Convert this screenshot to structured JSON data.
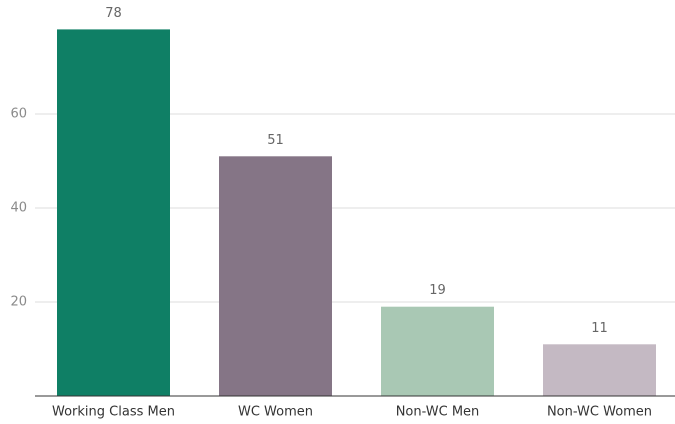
{
  "chart_data": {
    "type": "bar",
    "categories": [
      "Working Class Men",
      "WC Women",
      "Non-WC Men",
      "Non-WC Women"
    ],
    "values": [
      78,
      51,
      19,
      11
    ],
    "colors": [
      "#0f7f65",
      "#857586",
      "#a9c8b4",
      "#c4b9c3"
    ],
    "ylim": [
      0,
      80
    ],
    "yticks": [
      20,
      40,
      60
    ],
    "grid": true
  }
}
